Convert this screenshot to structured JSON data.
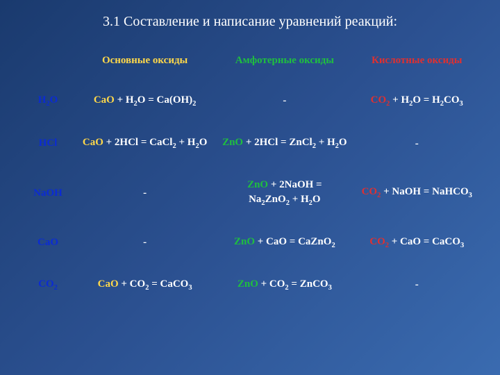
{
  "title": "3.1 Составление и написание уравнений реакций:",
  "colors": {
    "background_gradient": [
      "#1a3a6e",
      "#2b5090",
      "#3a6bb0"
    ],
    "basic_oxide": "#ffd84a",
    "amphoteric_oxide": "#1fbf3f",
    "acidic_oxide": "#e03030",
    "row_label": "#0b2bd4",
    "neutral_text": "#ffffff"
  },
  "headers": {
    "basic": "Основные оксиды",
    "amphoteric": "Амфотерные оксиды",
    "acidic": "Кислотные оксиды"
  },
  "row_labels": {
    "r1": "H2O",
    "r2": "HCl",
    "r3": "NaOH",
    "r4": "CaO",
    "r5": "CO2"
  },
  "cells": {
    "r1_basic": {
      "segments": [
        {
          "c": "y",
          "t": "CaO"
        },
        {
          "c": "w",
          "t": " + H"
        },
        {
          "sub": "2"
        },
        {
          "c": "w",
          "t": "O = Ca(OH)"
        },
        {
          "sub": "2"
        }
      ]
    },
    "r1_amph": "-",
    "r1_acid": {
      "segments": [
        {
          "c": "r",
          "t": "CO"
        },
        {
          "sub": "2",
          "c": "r"
        },
        {
          "c": "w",
          "t": " + H"
        },
        {
          "sub": "2"
        },
        {
          "c": "w",
          "t": "O = H"
        },
        {
          "sub": "2"
        },
        {
          "c": "w",
          "t": "CO"
        },
        {
          "sub": "3"
        }
      ]
    },
    "r2_basic": {
      "segments": [
        {
          "c": "y",
          "t": "CaO"
        },
        {
          "c": "w",
          "t": " + 2HCl = CaCl"
        },
        {
          "sub": "2"
        },
        {
          "c": "w",
          "t": " + H"
        },
        {
          "sub": "2"
        },
        {
          "c": "w",
          "t": "O"
        }
      ]
    },
    "r2_amph": {
      "segments": [
        {
          "c": "g",
          "t": "ZnO"
        },
        {
          "c": "w",
          "t": " + 2HCl = ZnCl"
        },
        {
          "sub": "2"
        },
        {
          "c": "w",
          "t": " + H"
        },
        {
          "sub": "2"
        },
        {
          "c": "w",
          "t": "O"
        }
      ]
    },
    "r2_acid": "-",
    "r3_basic": "-",
    "r3_amph": {
      "segments": [
        {
          "c": "g",
          "t": "ZnO"
        },
        {
          "c": "w",
          "t": " + 2NaOH ="
        },
        {
          "br": true
        },
        {
          "c": "w",
          "t": "Na"
        },
        {
          "sub": "2"
        },
        {
          "c": "w",
          "t": "ZnO"
        },
        {
          "sub": "2"
        },
        {
          "c": "w",
          "t": " + H"
        },
        {
          "sub": "2"
        },
        {
          "c": "w",
          "t": "O"
        }
      ]
    },
    "r3_acid": {
      "segments": [
        {
          "c": "r",
          "t": "CO"
        },
        {
          "sub": "2",
          "c": "r"
        },
        {
          "c": "w",
          "t": " + NaOH = NaHCO"
        },
        {
          "sub": "3"
        }
      ]
    },
    "r4_basic": "-",
    "r4_amph": {
      "segments": [
        {
          "c": "g",
          "t": "ZnO"
        },
        {
          "c": "w",
          "t": " + CaO = CaZnO"
        },
        {
          "sub": "2"
        }
      ]
    },
    "r4_acid": {
      "segments": [
        {
          "c": "r",
          "t": "CO"
        },
        {
          "sub": "2",
          "c": "r"
        },
        {
          "c": "w",
          "t": " + CaO = CaCO"
        },
        {
          "sub": "3"
        }
      ]
    },
    "r5_basic": {
      "segments": [
        {
          "c": "y",
          "t": "CaO"
        },
        {
          "c": "w",
          "t": " + CO"
        },
        {
          "sub": "2"
        },
        {
          "c": "w",
          "t": " = CaCO"
        },
        {
          "sub": "3"
        }
      ]
    },
    "r5_amph": {
      "segments": [
        {
          "c": "g",
          "t": "ZnO"
        },
        {
          "c": "w",
          "t": " + CO"
        },
        {
          "sub": "2"
        },
        {
          "c": "w",
          "t": " = ZnCO"
        },
        {
          "sub": "3"
        }
      ]
    },
    "r5_acid": "-"
  }
}
